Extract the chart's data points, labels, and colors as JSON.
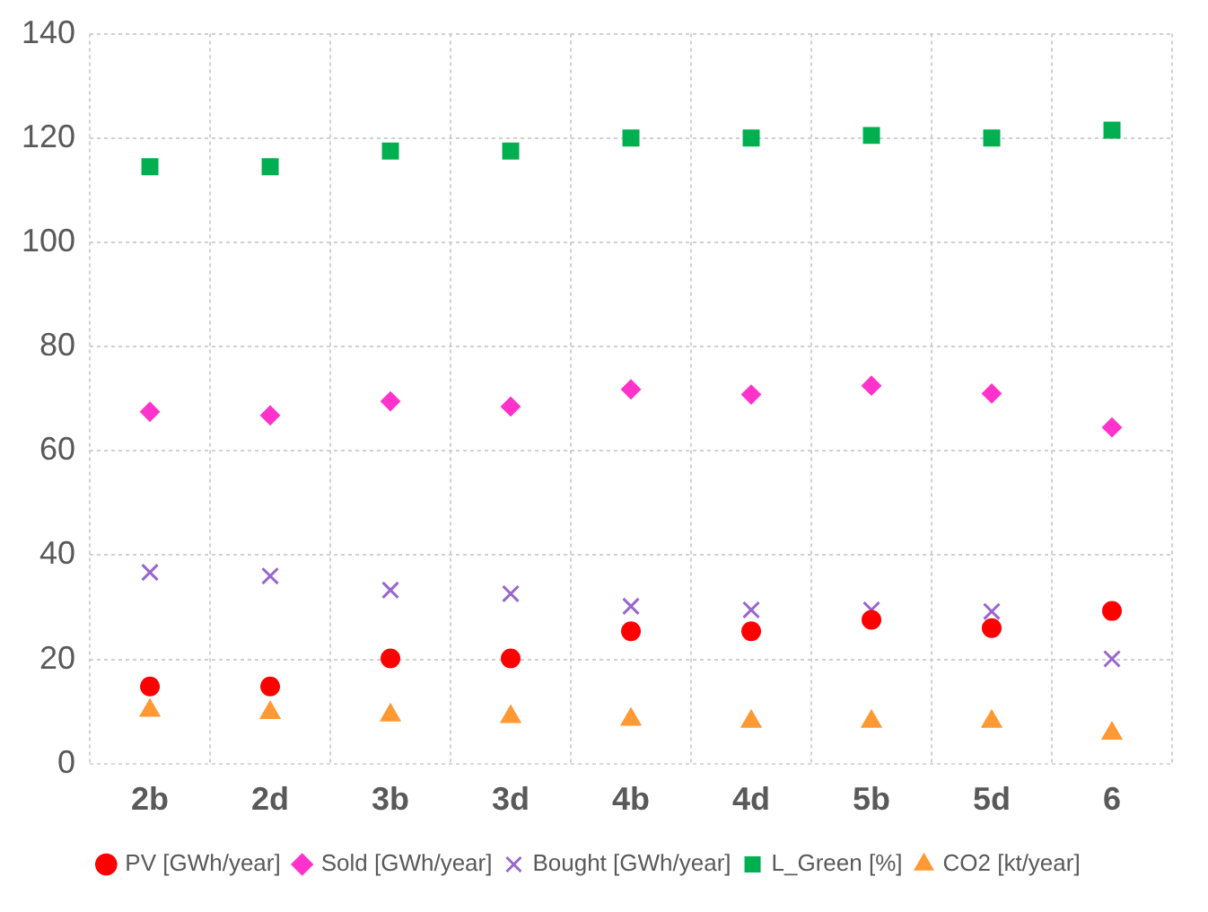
{
  "chart_data": {
    "type": "scatter",
    "categories": [
      "2b",
      "2d",
      "3b",
      "3d",
      "4b",
      "4d",
      "5b",
      "5d",
      "6"
    ],
    "ylim": [
      0,
      140
    ],
    "yticks": [
      0,
      20,
      40,
      60,
      80,
      100,
      120,
      140
    ],
    "grid": true,
    "legend": "bottom",
    "series": [
      {
        "name": "PV [GWh/year]",
        "color": "#ff0000",
        "marker": "circle",
        "values": [
          14.8,
          14.8,
          20.2,
          20.2,
          25.4,
          25.4,
          27.6,
          26,
          29.3
        ]
      },
      {
        "name": "Sold [GWh/year]",
        "color": "#ff33cc",
        "marker": "diamond",
        "values": [
          67.5,
          66.8,
          69.5,
          68.5,
          71.8,
          70.8,
          72.5,
          71,
          64.5
        ]
      },
      {
        "name": "Bought [GWh/year]",
        "color": "#9966cc",
        "marker": "cross",
        "values": [
          36.7,
          36,
          33.3,
          32.6,
          30.2,
          29.5,
          29.5,
          29.2,
          20.1
        ]
      },
      {
        "name": "L_Green [%]",
        "color": "#00b050",
        "marker": "square",
        "values": [
          114.5,
          114.5,
          117.5,
          117.5,
          120,
          120,
          120.5,
          120,
          121.5
        ]
      },
      {
        "name": "CO2 [kt/year]",
        "color": "#ff9933",
        "marker": "triangle",
        "values": [
          10.2,
          9.8,
          9.3,
          9,
          8.5,
          8.1,
          8.1,
          8.1,
          5.8
        ]
      }
    ]
  }
}
